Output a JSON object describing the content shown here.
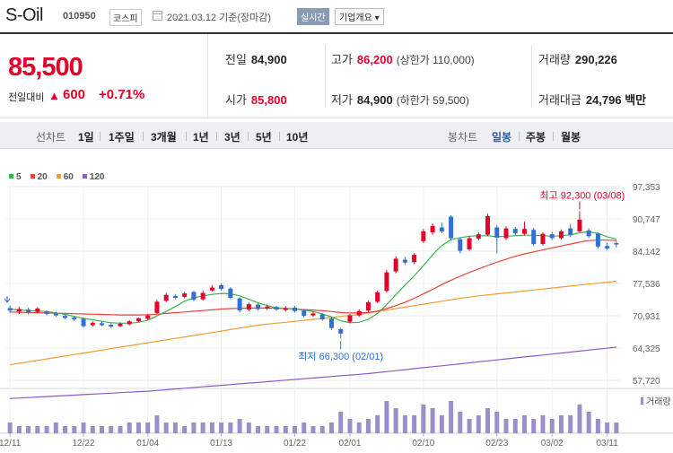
{
  "header": {
    "stock_name": "S-Oil",
    "stock_code": "010950",
    "market": "코스피",
    "datetime": "2021.03.12  기준(장마감)",
    "realtime_label": "실시간",
    "company_info_label": "기업개요 ▾"
  },
  "price": {
    "current": "85,500",
    "change_label": "전일대비",
    "change_arrow": "▲",
    "change_amount": "600",
    "change_pct": "+0.71%"
  },
  "stats": {
    "prev_close_label": "전일",
    "prev_close": "84,900",
    "high_label": "고가",
    "high": "86,200",
    "upper_limit": "(상한가 110,000)",
    "volume_label": "거래량",
    "volume": "290,226",
    "open_label": "시가",
    "open": "85,800",
    "low_label": "저가",
    "low": "84,900",
    "lower_limit": "(하한가 59,500)",
    "amount_label": "거래대금",
    "amount": "24,796 백만"
  },
  "period_tabs": {
    "line_chart_label": "선차트",
    "line_tabs": [
      "1일",
      "1주일",
      "3개월",
      "1년",
      "3년",
      "5년",
      "10년"
    ],
    "candle_chart_label": "봉차트",
    "candle_tabs": [
      "일봉",
      "주봉",
      "월봉"
    ],
    "active_candle_tab": "일봉"
  },
  "legend": [
    {
      "label": "5",
      "color": "#3cb44b"
    },
    {
      "label": "20",
      "color": "#e6443a"
    },
    {
      "label": "60",
      "color": "#f39c34"
    },
    {
      "label": "120",
      "color": "#8e5bc7"
    }
  ],
  "colors": {
    "up": "#e4002b",
    "down": "#2f6fd6",
    "volume": "#9a8fc8",
    "accent_blue": "#2b5ba8"
  },
  "chart_data": {
    "type": "candlestick",
    "y_ticks": [
      "97,353",
      "90,747",
      "84,142",
      "77,536",
      "70,931",
      "64,325",
      "57,720"
    ],
    "ylim": [
      57720,
      97353
    ],
    "x_ticks": [
      "12/11",
      "12/22",
      "01/04",
      "01/13",
      "01/22",
      "02/01",
      "02/10",
      "02/23",
      "03/02",
      "03/11"
    ],
    "annotations": {
      "high": "최고 92,300 (03/08)",
      "low": "최저 66,300 (02/01)"
    },
    "volume_label": "거래량",
    "candles": [
      {
        "o": 72500,
        "c": 72000,
        "h": 73000,
        "l": 71500
      },
      {
        "o": 71800,
        "c": 72300,
        "h": 72800,
        "l": 71300
      },
      {
        "o": 72200,
        "c": 71600,
        "h": 72600,
        "l": 71200
      },
      {
        "o": 71700,
        "c": 72400,
        "h": 72700,
        "l": 71400
      },
      {
        "o": 71800,
        "c": 71300,
        "h": 72000,
        "l": 71000
      },
      {
        "o": 71400,
        "c": 71000,
        "h": 71700,
        "l": 70700
      },
      {
        "o": 70900,
        "c": 70500,
        "h": 71200,
        "l": 70200
      },
      {
        "o": 70600,
        "c": 70200,
        "h": 70800,
        "l": 69900
      },
      {
        "o": 70300,
        "c": 68800,
        "h": 70500,
        "l": 68500
      },
      {
        "o": 69000,
        "c": 69500,
        "h": 69800,
        "l": 68700
      },
      {
        "o": 69400,
        "c": 69000,
        "h": 69800,
        "l": 68800
      },
      {
        "o": 69100,
        "c": 68700,
        "h": 69400,
        "l": 68400
      },
      {
        "o": 68800,
        "c": 69300,
        "h": 69600,
        "l": 68600
      },
      {
        "o": 69200,
        "c": 69800,
        "h": 70000,
        "l": 69000
      },
      {
        "o": 69800,
        "c": 70400,
        "h": 70600,
        "l": 69600
      },
      {
        "o": 70300,
        "c": 71000,
        "h": 71200,
        "l": 70100
      },
      {
        "o": 71500,
        "c": 73800,
        "h": 74200,
        "l": 71300
      },
      {
        "o": 74000,
        "c": 75200,
        "h": 75600,
        "l": 73700
      },
      {
        "o": 75000,
        "c": 74600,
        "h": 75400,
        "l": 74300
      },
      {
        "o": 74800,
        "c": 75500,
        "h": 75800,
        "l": 74500
      },
      {
        "o": 75800,
        "c": 74200,
        "h": 76000,
        "l": 73900
      },
      {
        "o": 74300,
        "c": 75600,
        "h": 76100,
        "l": 74000
      },
      {
        "o": 76100,
        "c": 76700,
        "h": 77200,
        "l": 75900
      },
      {
        "o": 77200,
        "c": 76400,
        "h": 77500,
        "l": 76100
      },
      {
        "o": 76500,
        "c": 74600,
        "h": 76800,
        "l": 74300
      },
      {
        "o": 74500,
        "c": 72000,
        "h": 74700,
        "l": 71600
      },
      {
        "o": 72200,
        "c": 73300,
        "h": 73600,
        "l": 71900
      },
      {
        "o": 73200,
        "c": 72300,
        "h": 73500,
        "l": 72000
      },
      {
        "o": 72400,
        "c": 72800,
        "h": 73200,
        "l": 72100
      },
      {
        "o": 72700,
        "c": 72200,
        "h": 73000,
        "l": 71900
      },
      {
        "o": 72100,
        "c": 72500,
        "h": 72900,
        "l": 71800
      },
      {
        "o": 72600,
        "c": 71900,
        "h": 72900,
        "l": 71600
      },
      {
        "o": 72000,
        "c": 70900,
        "h": 72300,
        "l": 70600
      },
      {
        "o": 71000,
        "c": 71400,
        "h": 71800,
        "l": 70700
      },
      {
        "o": 71200,
        "c": 70200,
        "h": 71500,
        "l": 69900
      },
      {
        "o": 70400,
        "c": 68400,
        "h": 70700,
        "l": 68000
      },
      {
        "o": 68200,
        "c": 67300,
        "h": 68500,
        "l": 66300
      },
      {
        "o": 69700,
        "c": 71000,
        "h": 71300,
        "l": 69400
      },
      {
        "o": 71000,
        "c": 71900,
        "h": 72200,
        "l": 70700
      },
      {
        "o": 72000,
        "c": 73700,
        "h": 74000,
        "l": 71700
      },
      {
        "o": 73800,
        "c": 75700,
        "h": 76100,
        "l": 73500
      },
      {
        "o": 76000,
        "c": 79800,
        "h": 80300,
        "l": 75700
      },
      {
        "o": 80000,
        "c": 82600,
        "h": 83100,
        "l": 79600
      },
      {
        "o": 82400,
        "c": 81800,
        "h": 83000,
        "l": 81300
      },
      {
        "o": 81900,
        "c": 83400,
        "h": 83800,
        "l": 81500
      },
      {
        "o": 86200,
        "c": 88200,
        "h": 88700,
        "l": 85800
      },
      {
        "o": 88000,
        "c": 89300,
        "h": 89800,
        "l": 87500
      },
      {
        "o": 89000,
        "c": 88200,
        "h": 90000,
        "l": 87800
      },
      {
        "o": 91200,
        "c": 86800,
        "h": 91500,
        "l": 86400
      },
      {
        "o": 86600,
        "c": 84200,
        "h": 87000,
        "l": 83700
      },
      {
        "o": 84500,
        "c": 86800,
        "h": 87200,
        "l": 84200
      },
      {
        "o": 86700,
        "c": 87600,
        "h": 88000,
        "l": 86300
      },
      {
        "o": 87500,
        "c": 91300,
        "h": 91800,
        "l": 87200
      },
      {
        "o": 89000,
        "c": 86900,
        "h": 89500,
        "l": 83700
      },
      {
        "o": 86800,
        "c": 88800,
        "h": 89200,
        "l": 86400
      },
      {
        "o": 88700,
        "c": 87800,
        "h": 89100,
        "l": 87300
      },
      {
        "o": 87700,
        "c": 88700,
        "h": 90200,
        "l": 87400
      },
      {
        "o": 88500,
        "c": 85600,
        "h": 88900,
        "l": 85200
      },
      {
        "o": 85600,
        "c": 87700,
        "h": 88000,
        "l": 85300
      },
      {
        "o": 87600,
        "c": 86800,
        "h": 88100,
        "l": 86400
      },
      {
        "o": 86800,
        "c": 88200,
        "h": 88600,
        "l": 86500
      },
      {
        "o": 88800,
        "c": 87400,
        "h": 89700,
        "l": 87000
      },
      {
        "o": 88200,
        "c": 90600,
        "h": 92300,
        "l": 88000
      },
      {
        "o": 88400,
        "c": 87200,
        "h": 88800,
        "l": 86800
      },
      {
        "o": 87700,
        "c": 85100,
        "h": 88000,
        "l": 84700
      },
      {
        "o": 85200,
        "c": 84700,
        "h": 85800,
        "l": 84400
      },
      {
        "o": 85800,
        "c": 85500,
        "h": 86200,
        "l": 84900
      }
    ],
    "volumes": [
      3,
      2,
      2,
      2,
      2,
      3,
      2,
      2,
      3,
      2,
      2,
      2,
      2,
      3,
      3,
      3,
      5,
      3,
      3,
      2,
      3,
      3,
      3,
      3,
      3,
      4,
      3,
      2,
      2,
      2,
      2,
      2,
      3,
      2,
      2,
      3,
      6,
      4,
      3,
      4,
      5,
      9,
      7,
      5,
      5,
      8,
      7,
      5,
      9,
      6,
      4,
      5,
      7,
      6,
      4,
      4,
      5,
      4,
      5,
      4,
      5,
      5,
      8,
      6,
      4,
      3,
      3
    ],
    "ma5": [
      72300,
      72100,
      72000,
      71900,
      71800,
      71500,
      71200,
      70800,
      70400,
      70100,
      69800,
      69500,
      69400,
      69400,
      69600,
      70000,
      70900,
      71800,
      72800,
      73900,
      74600,
      75000,
      75300,
      75500,
      75400,
      75000,
      74300,
      73600,
      73000,
      72600,
      72400,
      72300,
      72100,
      71800,
      71300,
      70700,
      69900,
      69500,
      69600,
      70200,
      71400,
      73200,
      75200,
      77200,
      79100,
      81200,
      83400,
      85300,
      86500,
      86900,
      87200,
      87300,
      87300,
      87100,
      87200,
      87300,
      87400,
      87400,
      87300,
      87200,
      87300,
      87500,
      87900,
      88100,
      87800,
      87100,
      86600
    ],
    "ma20": [
      71700,
      71650,
      71600,
      71550,
      71500,
      71450,
      71400,
      71350,
      71300,
      71250,
      71200,
      71150,
      71100,
      71100,
      71100,
      71150,
      71250,
      71400,
      71550,
      71700,
      71850,
      72000,
      72150,
      72300,
      72400,
      72450,
      72500,
      72500,
      72500,
      72450,
      72400,
      72300,
      72200,
      72100,
      71950,
      71800,
      71600,
      71500,
      71500,
      71600,
      71900,
      72400,
      73000,
      73700,
      74500,
      75400,
      76300,
      77300,
      78200,
      79000,
      79800,
      80500,
      81200,
      81900,
      82500,
      83100,
      83600,
      84000,
      84400,
      84800,
      85200,
      85600,
      86000,
      86300,
      86400,
      86400,
      86300
    ],
    "ma60": [
      60900,
      61200,
      61500,
      61800,
      62100,
      62400,
      62700,
      63000,
      63300,
      63600,
      63900,
      64200,
      64500,
      64800,
      65100,
      65400,
      65700,
      66000,
      66300,
      66600,
      66900,
      67200,
      67500,
      67800,
      68100,
      68400,
      68700,
      69000,
      69200,
      69400,
      69600,
      69800,
      70000,
      70200,
      70400,
      70600,
      70800,
      71000,
      71200,
      71500,
      71800,
      72100,
      72400,
      72700,
      73000,
      73300,
      73600,
      73900,
      74200,
      74500,
      74750,
      75000,
      75200,
      75400,
      75600,
      75800,
      76000,
      76200,
      76400,
      76600,
      76800,
      77000,
      77200,
      77400,
      77600,
      77800,
      78000
    ],
    "ma120": [
      54000,
      54100,
      54200,
      54300,
      54400,
      54500,
      54600,
      54700,
      54800,
      54900,
      55000,
      55100,
      55200,
      55300,
      55400,
      55500,
      55650,
      55800,
      55950,
      56100,
      56250,
      56400,
      56550,
      56700,
      56850,
      57000,
      57150,
      57300,
      57450,
      57600,
      57750,
      57900,
      58050,
      58200,
      58350,
      58500,
      58650,
      58800,
      58950,
      59100,
      59300,
      59500,
      59700,
      59900,
      60100,
      60300,
      60500,
      60700,
      60900,
      61100,
      61300,
      61500,
      61700,
      61900,
      62100,
      62300,
      62500,
      62700,
      62900,
      63100,
      63300,
      63500,
      63700,
      63900,
      64100,
      64300,
      64500
    ]
  }
}
